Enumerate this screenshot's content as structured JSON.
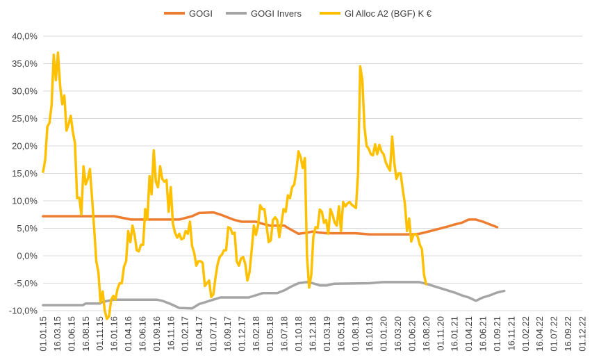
{
  "chart_data": {
    "type": "line",
    "title": "",
    "xlabel": "",
    "ylabel": "",
    "ylim": [
      -10,
      40
    ],
    "y_ticks": [
      "40,0%",
      "35,0%",
      "30,0%",
      "25,0%",
      "20,0%",
      "15,0%",
      "10,0%",
      "5,0%",
      "0,0%",
      "-5,0%",
      "-10,0%"
    ],
    "x_ticks": [
      "01.01.15",
      "16.03.15",
      "01.06.15",
      "16.08.15",
      "01.11.15",
      "16.01.16",
      "01.04.16",
      "16.06.16",
      "01.09.16",
      "16.11.16",
      "01.02.17",
      "16.04.17",
      "01.07.17",
      "16.09.17",
      "01.12.17",
      "16.02.18",
      "01.05.18",
      "16.07.18",
      "01.10.18",
      "16.12.18",
      "01.03.19",
      "16.05.19",
      "01.08.19",
      "16.10.19",
      "01.01.20",
      "16.03.20",
      "01.06.20",
      "16.08.20",
      "01.11.20",
      "16.01.21",
      "01.04.21",
      "16.06.21",
      "01.09.21",
      "16.11.21",
      "01.02.22",
      "16.04.22",
      "01.07.22",
      "16.09.22",
      "01.12.22"
    ],
    "grid": "horizontal",
    "legend_position": "top",
    "series": [
      {
        "name": "GOGI",
        "color": "#ED7D31",
        "points": [
          [
            0,
            7.2
          ],
          [
            5,
            7.2
          ],
          [
            5.2,
            7.1
          ],
          [
            6.2,
            6.6
          ],
          [
            9.6,
            6.6
          ],
          [
            10.5,
            7.2
          ],
          [
            11,
            7.8
          ],
          [
            12,
            7.9
          ],
          [
            12.5,
            7.5
          ],
          [
            13.5,
            6.5
          ],
          [
            14,
            6.2
          ],
          [
            15,
            6.2
          ],
          [
            15.5,
            5.8
          ],
          [
            16,
            5.5
          ],
          [
            17,
            5.5
          ],
          [
            17.3,
            5.0
          ],
          [
            18,
            4.0
          ],
          [
            18.6,
            4.2
          ],
          [
            19,
            4.4
          ],
          [
            19.5,
            4.2
          ],
          [
            20,
            4.1
          ],
          [
            22,
            4.1
          ],
          [
            22.5,
            4.0
          ],
          [
            23,
            3.9
          ],
          [
            26,
            3.9
          ],
          [
            26.5,
            4.0
          ],
          [
            27,
            4.3
          ],
          [
            28.5,
            5.3
          ],
          [
            29,
            5.7
          ],
          [
            29.5,
            6.0
          ],
          [
            30,
            6.6
          ],
          [
            30.5,
            6.6
          ],
          [
            31,
            6.2
          ],
          [
            31.5,
            5.7
          ],
          [
            32,
            5.2
          ]
        ]
      },
      {
        "name": "GOGI Invers",
        "color": "#A5A5A5",
        "points": [
          [
            0,
            -9.0
          ],
          [
            2.8,
            -9.0
          ],
          [
            3,
            -8.7
          ],
          [
            4,
            -8.7
          ],
          [
            4.2,
            -8.4
          ],
          [
            5,
            -8.0
          ],
          [
            8,
            -8.0
          ],
          [
            8.4,
            -8.2
          ],
          [
            9,
            -8.8
          ],
          [
            9.6,
            -9.5
          ],
          [
            10.5,
            -9.6
          ],
          [
            11,
            -8.8
          ],
          [
            12,
            -8.0
          ],
          [
            12.5,
            -7.6
          ],
          [
            14.5,
            -7.6
          ],
          [
            15.5,
            -6.8
          ],
          [
            16.5,
            -6.8
          ],
          [
            17,
            -6.3
          ],
          [
            17.5,
            -5.6
          ],
          [
            18,
            -5.0
          ],
          [
            18.6,
            -4.8
          ],
          [
            19,
            -5.0
          ],
          [
            19.5,
            -5.4
          ],
          [
            20,
            -5.4
          ],
          [
            20.5,
            -5.1
          ],
          [
            23,
            -5.0
          ],
          [
            24,
            -4.8
          ],
          [
            26,
            -4.8
          ],
          [
            26.5,
            -4.8
          ],
          [
            27,
            -5.1
          ],
          [
            28.5,
            -6.3
          ],
          [
            29,
            -6.7
          ],
          [
            29.5,
            -7.2
          ],
          [
            30,
            -7.6
          ],
          [
            30.5,
            -8.2
          ],
          [
            31,
            -7.6
          ],
          [
            31.5,
            -7.2
          ],
          [
            32,
            -6.7
          ],
          [
            32.5,
            -6.4
          ]
        ]
      },
      {
        "name": "Gl Alloc A2 (BGF) K €",
        "color": "#FFC000",
        "points": [
          [
            0,
            15.3
          ],
          [
            0.15,
            17.5
          ],
          [
            0.3,
            23.5
          ],
          [
            0.45,
            24.2
          ],
          [
            0.6,
            27.5
          ],
          [
            0.75,
            36.6
          ],
          [
            0.9,
            32.0
          ],
          [
            1.05,
            37.0
          ],
          [
            1.2,
            31.0
          ],
          [
            1.35,
            27.6
          ],
          [
            1.5,
            29.2
          ],
          [
            1.65,
            22.8
          ],
          [
            1.8,
            24.0
          ],
          [
            1.95,
            25.5
          ],
          [
            2.1,
            22.5
          ],
          [
            2.25,
            20.5
          ],
          [
            2.4,
            10.5
          ],
          [
            2.55,
            10.6
          ],
          [
            2.7,
            7.5
          ],
          [
            2.85,
            16.3
          ],
          [
            3.0,
            13.0
          ],
          [
            3.15,
            14.0
          ],
          [
            3.3,
            15.8
          ],
          [
            3.45,
            10.5
          ],
          [
            3.6,
            5.0
          ],
          [
            3.75,
            -1.0
          ],
          [
            3.9,
            -3.0
          ],
          [
            4.05,
            -8.5
          ],
          [
            4.2,
            -6.5
          ],
          [
            4.35,
            -10.0
          ],
          [
            4.5,
            -11.5
          ],
          [
            4.65,
            -11.0
          ],
          [
            4.8,
            -8.0
          ],
          [
            4.95,
            -7.3
          ],
          [
            5.1,
            -8.0
          ],
          [
            5.25,
            -6.0
          ],
          [
            5.4,
            -5.0
          ],
          [
            5.55,
            -5.0
          ],
          [
            5.7,
            -2.0
          ],
          [
            5.85,
            -1.0
          ],
          [
            6.0,
            4.5
          ],
          [
            6.15,
            2.5
          ],
          [
            6.3,
            5.5
          ],
          [
            6.45,
            3.8
          ],
          [
            6.6,
            1.0
          ],
          [
            6.75,
            0.8
          ],
          [
            6.9,
            2.0
          ],
          [
            7.05,
            2.0
          ],
          [
            7.2,
            8.5
          ],
          [
            7.35,
            6.6
          ],
          [
            7.5,
            14.5
          ],
          [
            7.65,
            11.2
          ],
          [
            7.8,
            19.2
          ],
          [
            7.95,
            13.5
          ],
          [
            8.1,
            12.5
          ],
          [
            8.25,
            16.3
          ],
          [
            8.4,
            14.0
          ],
          [
            8.55,
            13.5
          ],
          [
            8.7,
            13.8
          ],
          [
            8.85,
            8.0
          ],
          [
            9.0,
            12.5
          ],
          [
            9.15,
            5.8
          ],
          [
            9.3,
            4.2
          ],
          [
            9.45,
            3.3
          ],
          [
            9.6,
            4.0
          ],
          [
            9.75,
            3.0
          ],
          [
            9.9,
            3.2
          ],
          [
            10.05,
            4.5
          ],
          [
            10.2,
            4.0
          ],
          [
            10.35,
            6.2
          ],
          [
            10.5,
            1.8
          ],
          [
            10.65,
            0.5
          ],
          [
            10.8,
            -1.8
          ],
          [
            10.95,
            -1.0
          ],
          [
            11.1,
            -1.0
          ],
          [
            11.25,
            -1.3
          ],
          [
            11.4,
            -5.5
          ],
          [
            11.55,
            -5.0
          ],
          [
            11.7,
            -4.5
          ],
          [
            11.85,
            -7.5
          ],
          [
            12.0,
            -7.0
          ],
          [
            12.15,
            -4.0
          ],
          [
            12.3,
            -1.5
          ],
          [
            12.45,
            -0.2
          ],
          [
            12.6,
            0.2
          ],
          [
            12.75,
            1.0
          ],
          [
            12.9,
            1.0
          ],
          [
            13.05,
            5.2
          ],
          [
            13.2,
            5.0
          ],
          [
            13.35,
            4.0
          ],
          [
            13.5,
            4.2
          ],
          [
            13.65,
            -1.0
          ],
          [
            13.8,
            -1.8
          ],
          [
            13.95,
            -0.5
          ],
          [
            14.1,
            -0.2
          ],
          [
            14.25,
            -1.5
          ],
          [
            14.4,
            -4.5
          ],
          [
            14.55,
            -3.0
          ],
          [
            14.7,
            1.0
          ],
          [
            14.85,
            5.5
          ],
          [
            15.0,
            3.8
          ],
          [
            15.15,
            5.5
          ],
          [
            15.3,
            9.2
          ],
          [
            15.45,
            8.5
          ],
          [
            15.6,
            8.5
          ],
          [
            15.75,
            5.5
          ],
          [
            15.9,
            2.5
          ],
          [
            16.05,
            2.8
          ],
          [
            16.2,
            6.5
          ],
          [
            16.35,
            7.0
          ],
          [
            16.5,
            6.5
          ],
          [
            16.65,
            3.4
          ],
          [
            16.8,
            6.0
          ],
          [
            16.95,
            8.5
          ],
          [
            17.1,
            8.0
          ],
          [
            17.25,
            11.0
          ],
          [
            17.4,
            10.5
          ],
          [
            17.55,
            12.5
          ],
          [
            17.7,
            13.0
          ],
          [
            17.85,
            15.5
          ],
          [
            18.0,
            19.0
          ],
          [
            18.15,
            18.0
          ],
          [
            18.3,
            16.0
          ],
          [
            18.45,
            17.8
          ],
          [
            18.6,
            0.0
          ],
          [
            18.75,
            -5.8
          ],
          [
            18.9,
            -3.5
          ],
          [
            19.05,
            3.5
          ],
          [
            19.2,
            5.2
          ],
          [
            19.35,
            5.0
          ],
          [
            19.5,
            8.4
          ],
          [
            19.65,
            8.0
          ],
          [
            19.8,
            6.0
          ],
          [
            19.95,
            6.5
          ],
          [
            20.1,
            4.0
          ],
          [
            20.25,
            8.5
          ],
          [
            20.4,
            7.5
          ],
          [
            20.55,
            6.0
          ],
          [
            20.7,
            5.5
          ],
          [
            20.85,
            9.0
          ],
          [
            21.0,
            4.5
          ],
          [
            21.15,
            9.8
          ],
          [
            21.3,
            9.0
          ],
          [
            21.45,
            9.5
          ],
          [
            21.6,
            9.8
          ],
          [
            21.75,
            9.3
          ],
          [
            21.9,
            9.0
          ],
          [
            22.05,
            8.7
          ],
          [
            22.2,
            15.0
          ],
          [
            22.35,
            34.5
          ],
          [
            22.5,
            32.0
          ],
          [
            22.65,
            23.5
          ],
          [
            22.8,
            20.0
          ],
          [
            22.95,
            19.5
          ],
          [
            23.1,
            18.5
          ],
          [
            23.25,
            18.3
          ],
          [
            23.4,
            20.3
          ],
          [
            23.55,
            18.5
          ],
          [
            23.7,
            20.2
          ],
          [
            23.85,
            19.0
          ],
          [
            24.0,
            18.5
          ],
          [
            24.15,
            17.0
          ],
          [
            24.3,
            16.2
          ],
          [
            24.45,
            15.5
          ],
          [
            24.6,
            21.7
          ],
          [
            24.75,
            17.0
          ],
          [
            24.9,
            14.0
          ],
          [
            25.05,
            15.0
          ],
          [
            25.2,
            15.0
          ],
          [
            25.35,
            12.0
          ],
          [
            25.5,
            9.5
          ],
          [
            25.65,
            4.5
          ],
          [
            25.8,
            6.8
          ],
          [
            25.95,
            2.6
          ],
          [
            26.1,
            3.8
          ],
          [
            26.25,
            4.0
          ],
          [
            26.4,
            3.5
          ],
          [
            26.55,
            2.0
          ],
          [
            26.7,
            1.2
          ],
          [
            26.85,
            -3.5
          ],
          [
            27.0,
            -5.2
          ]
        ]
      }
    ]
  }
}
